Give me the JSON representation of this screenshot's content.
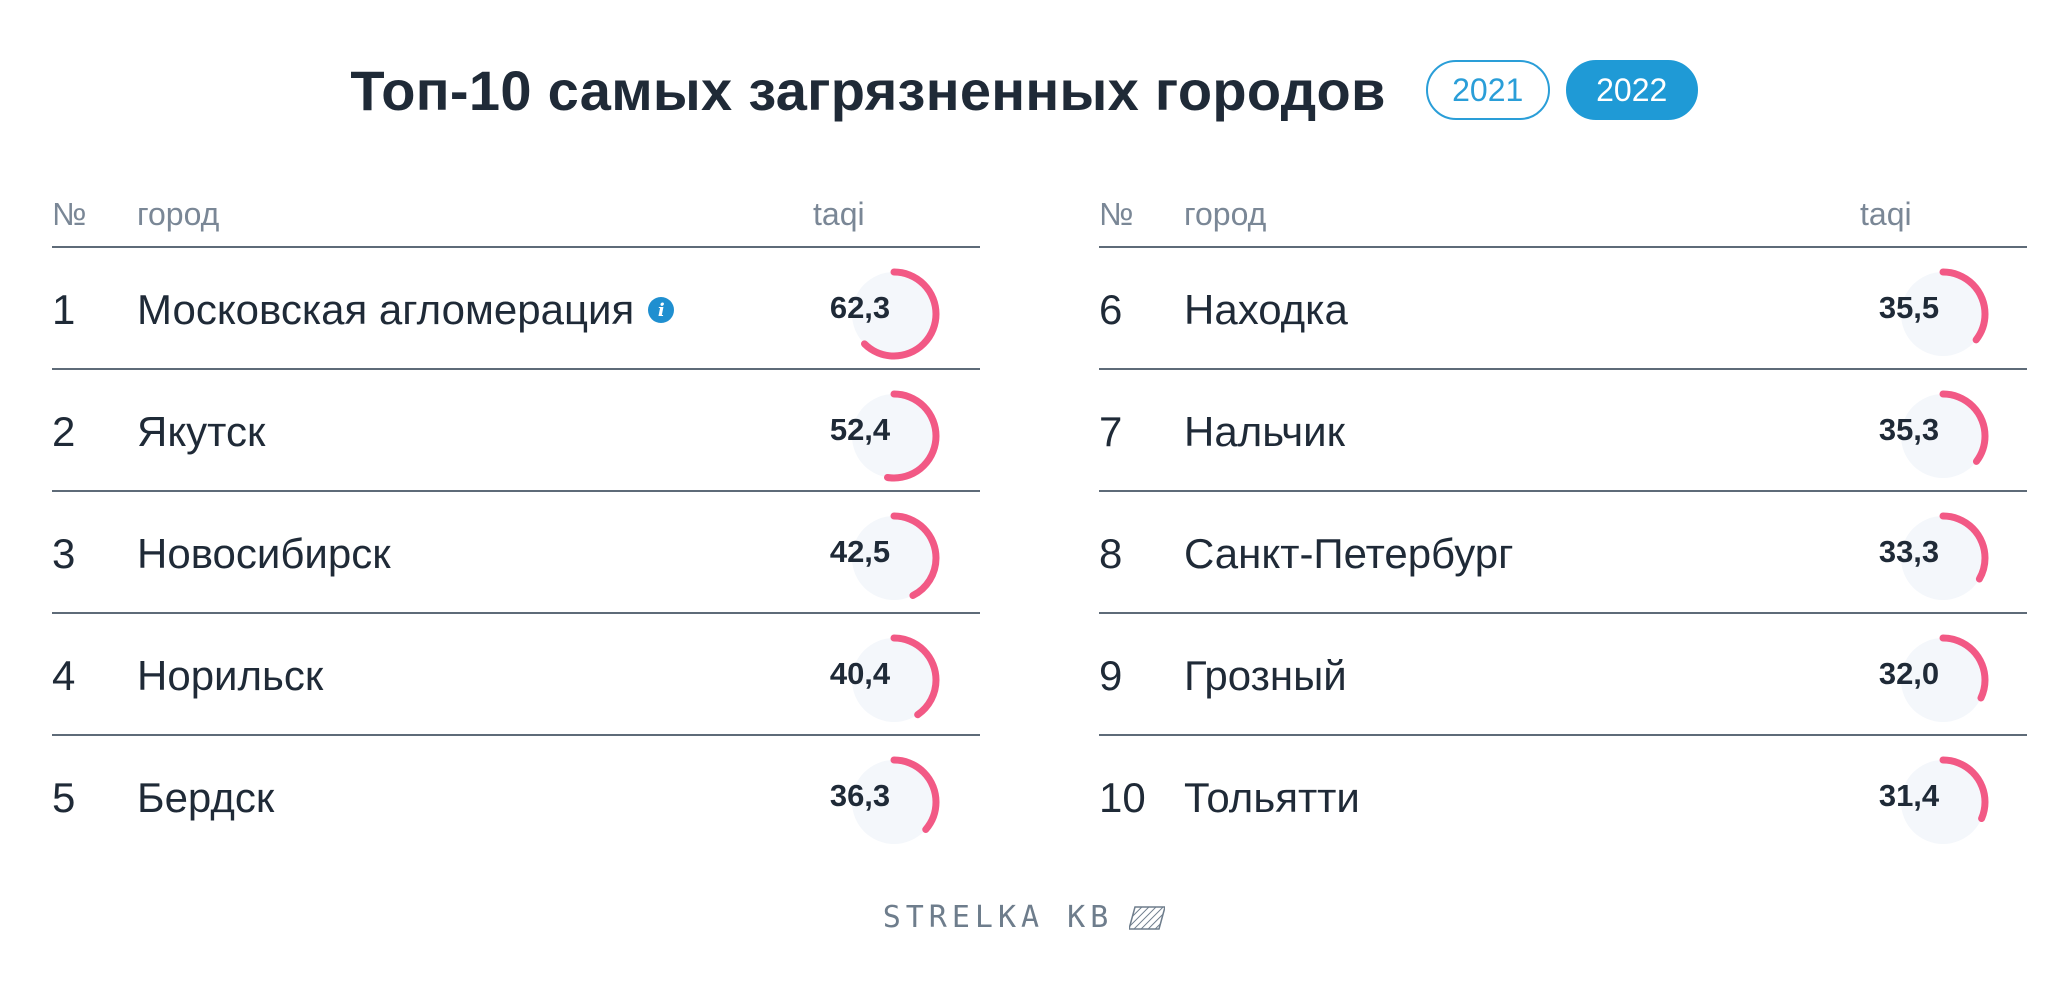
{
  "header": {
    "title": "Топ-10 самых загрязненных городов",
    "tabs": [
      {
        "label": "2021",
        "active": false
      },
      {
        "label": "2022",
        "active": true
      }
    ]
  },
  "columns": {
    "number": "№",
    "city": "город",
    "value": "taqi"
  },
  "scale_max": 100,
  "colors": {
    "accent": "#1f9ad6",
    "gauge": "#f25985",
    "gauge_bg": "#f4f7fb"
  },
  "left_rows": [
    {
      "n": "1",
      "city": "Московская агломерация",
      "value": "62,3",
      "num": 62.3,
      "info": true
    },
    {
      "n": "2",
      "city": "Якутск",
      "value": "52,4",
      "num": 52.4
    },
    {
      "n": "3",
      "city": "Новосибирск",
      "value": "42,5",
      "num": 42.5
    },
    {
      "n": "4",
      "city": "Норильск",
      "value": "40,4",
      "num": 40.4
    },
    {
      "n": "5",
      "city": "Бердск",
      "value": "36,3",
      "num": 36.3
    }
  ],
  "right_rows": [
    {
      "n": "6",
      "city": "Находка",
      "value": "35,5",
      "num": 35.5
    },
    {
      "n": "7",
      "city": "Нальчик",
      "value": "35,3",
      "num": 35.3
    },
    {
      "n": "8",
      "city": "Санкт-Петербург",
      "value": "33,3",
      "num": 33.3
    },
    {
      "n": "9",
      "city": "Грозный",
      "value": "32,0",
      "num": 32.0
    },
    {
      "n": "10",
      "city": "Тольятти",
      "value": "31,4",
      "num": 31.4
    }
  ],
  "footer": {
    "brand": "STRELKA KB",
    "logo_icon": "hatched-flag-icon"
  }
}
